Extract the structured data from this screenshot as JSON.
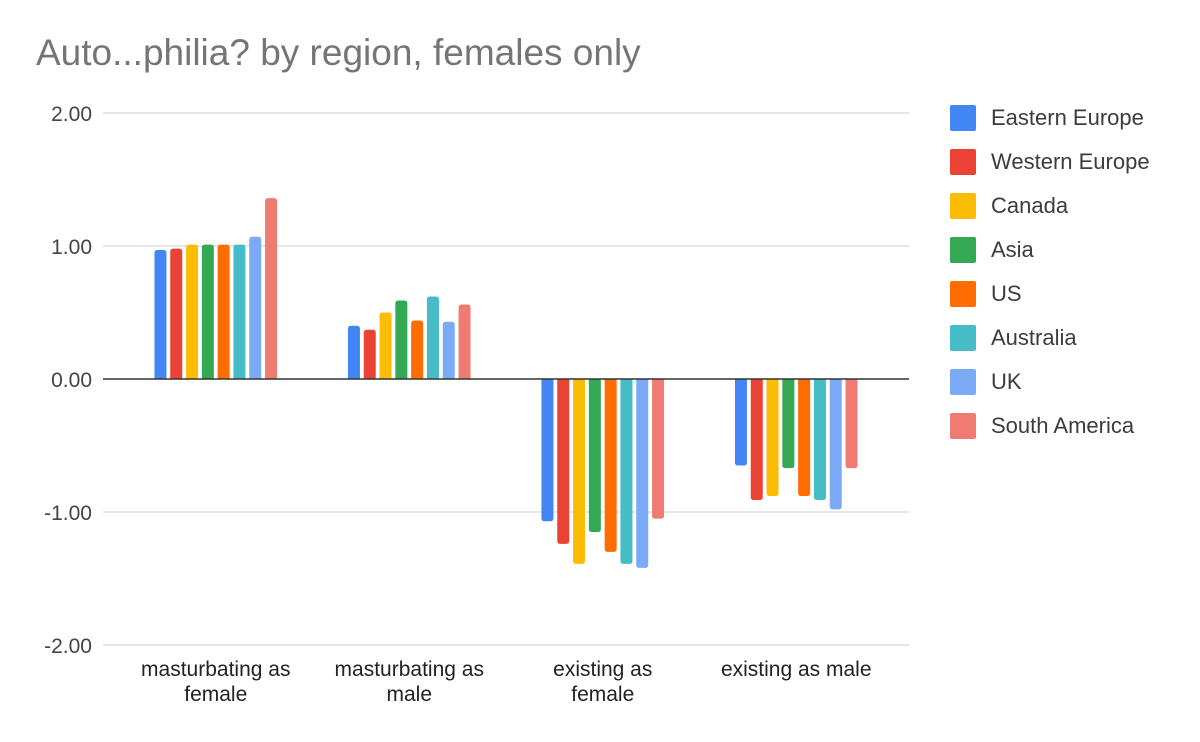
{
  "chart_data": {
    "type": "bar",
    "title": "Auto...philia? by region, females only",
    "xlabel": "",
    "ylabel": "",
    "ylim": [
      -2,
      2
    ],
    "y_ticks": [
      "2.00",
      "1.00",
      "0.00",
      "-1.00",
      "-2.00"
    ],
    "y_tick_values": [
      2,
      1,
      0,
      -1,
      -2
    ],
    "grid": true,
    "legend_position": "right",
    "categories": [
      [
        "masturbating as",
        "female"
      ],
      [
        "masturbating as",
        "male"
      ],
      [
        "existing as",
        "female"
      ],
      [
        "existing as male"
      ]
    ],
    "series": [
      {
        "name": "Eastern Europe",
        "color": "#4285F4",
        "values": [
          0.97,
          0.4,
          -1.07,
          -0.65
        ]
      },
      {
        "name": "Western Europe",
        "color": "#EA4335",
        "values": [
          0.98,
          0.37,
          -1.24,
          -0.91
        ]
      },
      {
        "name": "Canada",
        "color": "#FBBC04",
        "values": [
          1.01,
          0.5,
          -1.39,
          -0.88
        ]
      },
      {
        "name": "Asia",
        "color": "#34A853",
        "values": [
          1.01,
          0.59,
          -1.15,
          -0.67
        ]
      },
      {
        "name": "US",
        "color": "#FF6D01",
        "values": [
          1.01,
          0.44,
          -1.3,
          -0.88
        ]
      },
      {
        "name": "Australia",
        "color": "#46BDC6",
        "values": [
          1.01,
          0.62,
          -1.39,
          -0.91
        ]
      },
      {
        "name": "UK",
        "color": "#7BAAF7",
        "values": [
          1.07,
          0.43,
          -1.42,
          -0.98
        ]
      },
      {
        "name": "South America",
        "color": "#F07B72",
        "values": [
          1.36,
          0.56,
          -1.05,
          -0.67
        ]
      }
    ]
  }
}
